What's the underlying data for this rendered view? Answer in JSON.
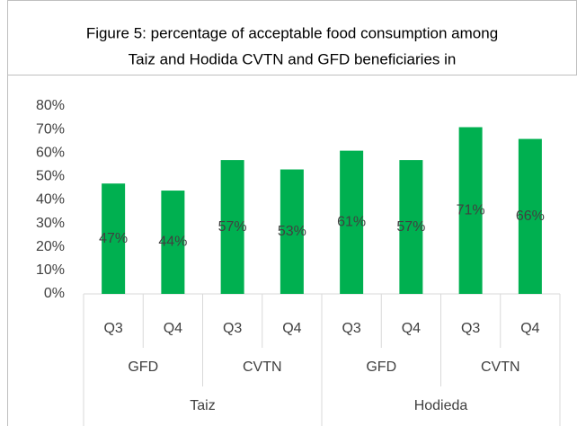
{
  "chart_data": {
    "type": "bar",
    "title": [
      "Figure 5: percentage of acceptable food consumption among",
      "Taiz and Hodida CVTN and GFD beneficiaries in"
    ],
    "categories": [
      "Q3",
      "Q4",
      "Q3",
      "Q4",
      "Q3",
      "Q4",
      "Q3",
      "Q4"
    ],
    "groups": [
      "GFD",
      "CVTN",
      "GFD",
      "CVTN"
    ],
    "regions": [
      "Taiz",
      "Hodieda"
    ],
    "values": [
      47,
      44,
      57,
      53,
      61,
      57,
      71,
      66
    ],
    "value_labels": [
      "47%",
      "44%",
      "57%",
      "53%",
      "61%",
      "57%",
      "71%",
      "66%"
    ],
    "color": "#00b050",
    "ylim": [
      0,
      80
    ],
    "yticks": [
      {
        "value": 0,
        "label": "0%"
      },
      {
        "value": 10,
        "label": "10%"
      },
      {
        "value": 20,
        "label": "20%"
      },
      {
        "value": 30,
        "label": "30%"
      },
      {
        "value": 40,
        "label": "40%"
      },
      {
        "value": 50,
        "label": "50%"
      },
      {
        "value": 60,
        "label": "60%"
      },
      {
        "value": 70,
        "label": "70%"
      },
      {
        "value": 80,
        "label": "80%"
      }
    ],
    "grid": false
  }
}
